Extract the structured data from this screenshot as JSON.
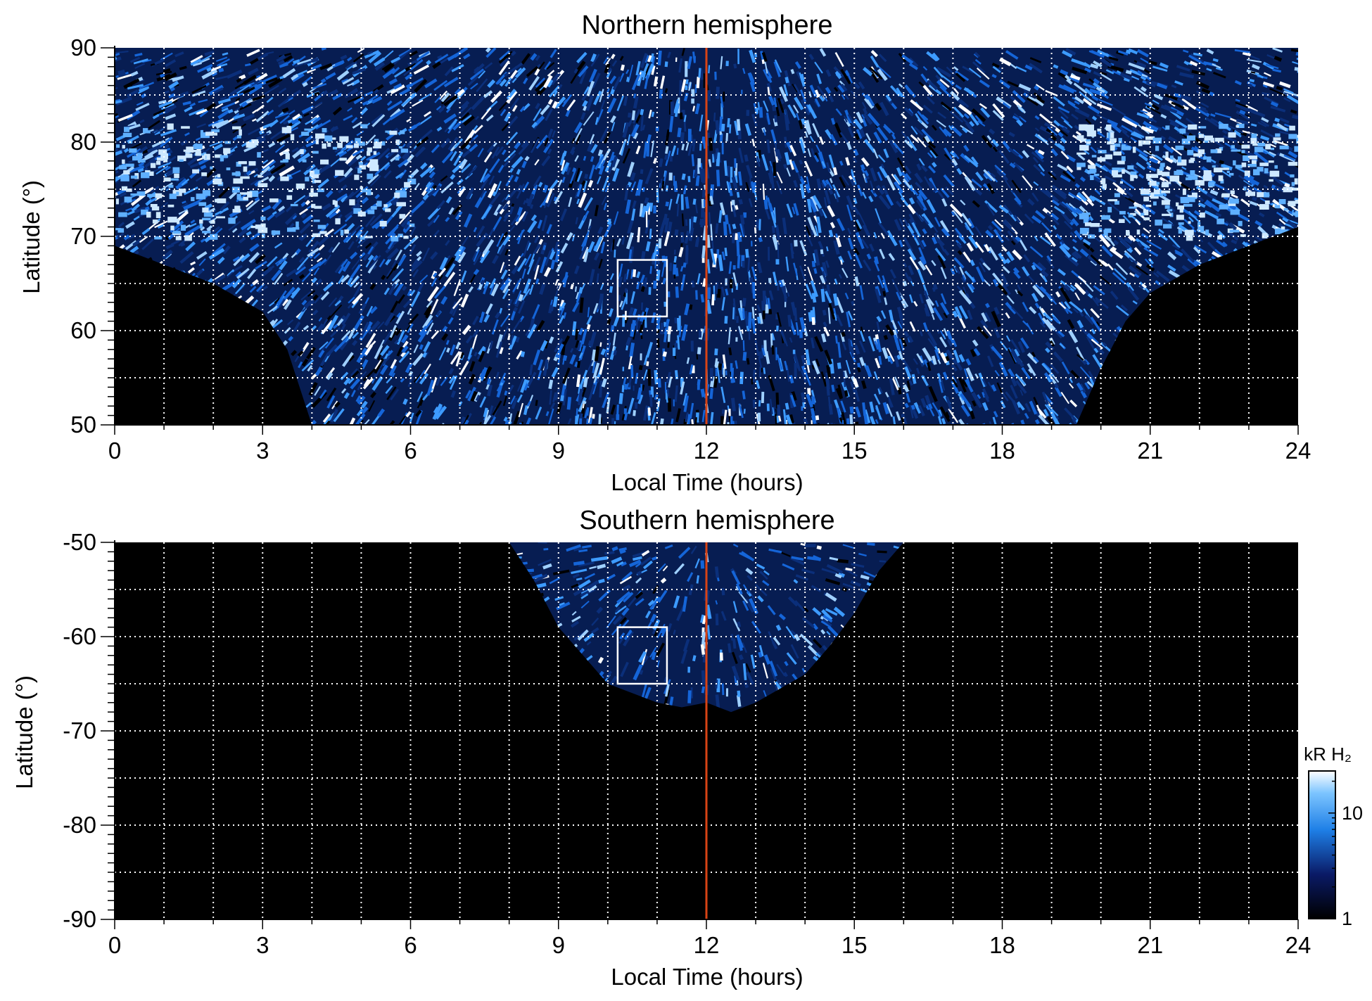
{
  "colors": {
    "background": "#ffffff",
    "plot_background": "#000000",
    "emission_dark": "#0a2a66",
    "emission_mid": "#1e7fe6",
    "emission_bright": "#ffffff",
    "noon_line": "#d84315",
    "grid": "#ffffff",
    "box": "#ffffff"
  },
  "chart_data": [
    {
      "type": "heatmap",
      "title": "Northern hemisphere",
      "xlabel": "Local Time (hours)",
      "ylabel": "Latitude (°)",
      "xlim": [
        0,
        24
      ],
      "ylim": [
        50,
        90
      ],
      "x_ticks": [
        0,
        3,
        6,
        9,
        12,
        15,
        18,
        21,
        24
      ],
      "y_ticks": [
        50,
        60,
        70,
        80,
        90
      ],
      "grid": true,
      "noon_line_x": 12,
      "highlight_box": {
        "x": [
          10.2,
          11.2
        ],
        "y": [
          61.5,
          67.5
        ]
      },
      "emission_boundary_lat_by_hour": [
        [
          0,
          69
        ],
        [
          1,
          67
        ],
        [
          2,
          65
        ],
        [
          3,
          62
        ],
        [
          3.5,
          58
        ],
        [
          4,
          50
        ],
        [
          19.5,
          50
        ],
        [
          20,
          56
        ],
        [
          20.5,
          61
        ],
        [
          21,
          64
        ],
        [
          22,
          67
        ],
        [
          23,
          69
        ],
        [
          24,
          71
        ]
      ]
    },
    {
      "type": "heatmap",
      "title": "Southern hemisphere",
      "xlabel": "Local Time (hours)",
      "ylabel": "Latitude (°)",
      "xlim": [
        0,
        24
      ],
      "ylim": [
        -90,
        -50
      ],
      "x_ticks": [
        0,
        3,
        6,
        9,
        12,
        15,
        18,
        21,
        24
      ],
      "y_ticks": [
        -90,
        -80,
        -70,
        -60,
        -50
      ],
      "grid": true,
      "noon_line_x": 12,
      "highlight_box": {
        "x": [
          10.2,
          11.2
        ],
        "y": [
          -65,
          -59
        ]
      },
      "emission_boundary_lat_by_hour": [
        [
          8,
          -50
        ],
        [
          8.5,
          -54
        ],
        [
          9,
          -59
        ],
        [
          9.5,
          -62
        ],
        [
          10,
          -65
        ],
        [
          11,
          -67
        ],
        [
          11.5,
          -67.5
        ],
        [
          12,
          -67
        ],
        [
          12.5,
          -68
        ],
        [
          13,
          -67
        ],
        [
          14,
          -64
        ],
        [
          14.5,
          -61
        ],
        [
          15,
          -57.5
        ],
        [
          15.5,
          -53
        ],
        [
          16,
          -50
        ]
      ]
    }
  ],
  "colorbar": {
    "label": "kR H₂",
    "ticks": [
      {
        "value": 1,
        "label": "1"
      },
      {
        "value": 10,
        "label": "10"
      }
    ],
    "range": [
      1,
      25
    ],
    "scale": "log"
  }
}
